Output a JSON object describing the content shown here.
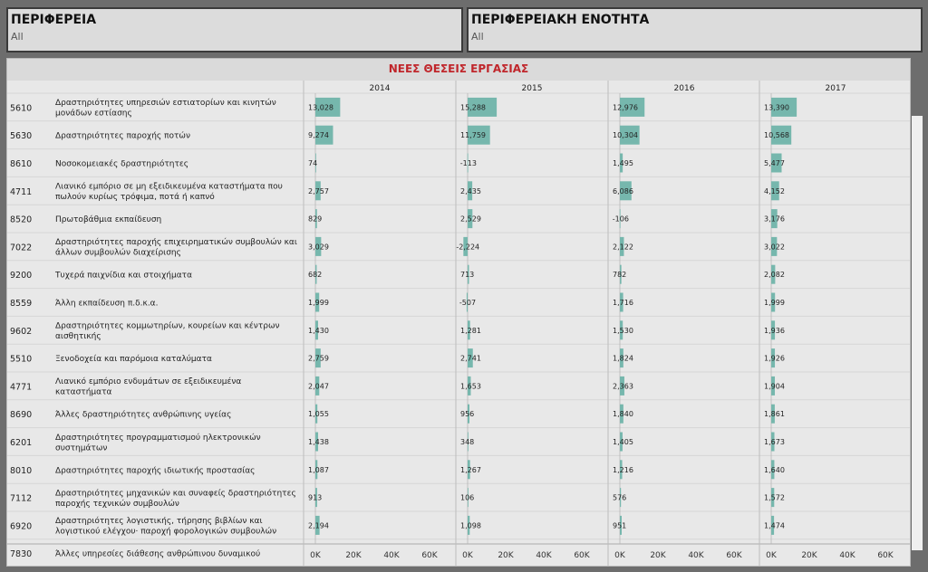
{
  "filters": [
    {
      "title": "ΠΕΡΙΦΕΡΕΙΑ",
      "value": "All"
    },
    {
      "title": "ΠΕΡΙΦΕΡΕΙΑΚΗ ΕΝΟΤΗΤΑ",
      "value": "All"
    }
  ],
  "chart_data": {
    "type": "bar",
    "title": "ΝΕΕΣ ΘΕΣΕΙΣ ΕΡΓΑΣΙΑΣ",
    "columns": [
      "2014",
      "2015",
      "2016",
      "2017"
    ],
    "axis_ticks": [
      "0K",
      "20K",
      "40K",
      "60K"
    ],
    "xlim": [
      -3000,
      70000
    ],
    "bar_color": "#76b7ad",
    "rows": [
      {
        "code": "5610",
        "label": "Δραστηριότητες υπηρεσιών εστιατορίων και κινητών μονάδων εστίασης",
        "values": [
          13028,
          15288,
          12976,
          13390
        ],
        "labels": [
          "13,028",
          "15,288",
          "12,976",
          "13,390"
        ]
      },
      {
        "code": "5630",
        "label": "Δραστηριότητες παροχής ποτών",
        "values": [
          9274,
          11759,
          10304,
          10568
        ],
        "labels": [
          "9,274",
          "11,759",
          "10,304",
          "10,568"
        ]
      },
      {
        "code": "8610",
        "label": "Νοσοκομειακές δραστηριότητες",
        "values": [
          74,
          -113,
          1495,
          5477
        ],
        "labels": [
          "74",
          "-113",
          "1,495",
          "5,477"
        ]
      },
      {
        "code": "4711",
        "label": "Λιανικό εμπόριο σε μη εξειδικευμένα καταστήματα που πωλούν κυρίως τρόφιμα, ποτά ή καπνό",
        "values": [
          2757,
          2435,
          6086,
          4152
        ],
        "labels": [
          "2,757",
          "2,435",
          "6,086",
          "4,152"
        ]
      },
      {
        "code": "8520",
        "label": "Πρωτοβάθμια εκπαίδευση",
        "values": [
          829,
          2529,
          -106,
          3176
        ],
        "labels": [
          "829",
          "2,529",
          "-106",
          "3,176"
        ]
      },
      {
        "code": "7022",
        "label": "Δραστηριότητες παροχής επιχειρηματικών συμβουλών και άλλων συμβουλών διαχείρισης",
        "values": [
          3029,
          -2224,
          2122,
          3022
        ],
        "labels": [
          "3,029",
          "-2,224",
          "2,122",
          "3,022"
        ]
      },
      {
        "code": "9200",
        "label": "Τυχερά παιχνίδια και στοιχήματα",
        "values": [
          682,
          713,
          782,
          2082
        ],
        "labels": [
          "682",
          "713",
          "782",
          "2,082"
        ]
      },
      {
        "code": "8559",
        "label": "Άλλη εκπαίδευση π.δ.κ.α.",
        "values": [
          1999,
          -507,
          1716,
          1999
        ],
        "labels": [
          "1,999",
          "-507",
          "1,716",
          "1,999"
        ]
      },
      {
        "code": "9602",
        "label": "Δραστηριότητες κομμωτηρίων, κουρείων και κέντρων αισθητικής",
        "values": [
          1430,
          1281,
          1530,
          1936
        ],
        "labels": [
          "1,430",
          "1,281",
          "1,530",
          "1,936"
        ]
      },
      {
        "code": "5510",
        "label": "Ξενοδοχεία και παρόμοια καταλύματα",
        "values": [
          2759,
          2741,
          1824,
          1926
        ],
        "labels": [
          "2,759",
          "2,741",
          "1,824",
          "1,926"
        ]
      },
      {
        "code": "4771",
        "label": "Λιανικό εμπόριο ενδυμάτων σε εξειδικευμένα καταστήματα",
        "values": [
          2047,
          1653,
          2363,
          1904
        ],
        "labels": [
          "2,047",
          "1,653",
          "2,363",
          "1,904"
        ]
      },
      {
        "code": "8690",
        "label": "Άλλες δραστηριότητες ανθρώπινης υγείας",
        "values": [
          1055,
          956,
          1840,
          1861
        ],
        "labels": [
          "1,055",
          "956",
          "1,840",
          "1,861"
        ]
      },
      {
        "code": "6201",
        "label": "Δραστηριότητες προγραμματισμού ηλεκτρονικών συστημάτων",
        "values": [
          1438,
          348,
          1405,
          1673
        ],
        "labels": [
          "1,438",
          "348",
          "1,405",
          "1,673"
        ]
      },
      {
        "code": "8010",
        "label": "Δραστηριότητες παροχής ιδιωτικής προστασίας",
        "values": [
          1087,
          1267,
          1216,
          1640
        ],
        "labels": [
          "1,087",
          "1,267",
          "1,216",
          "1,640"
        ]
      },
      {
        "code": "7112",
        "label": "Δραστηριότητες μηχανικών και συναφείς δραστηριότητες παροχής τεχνικών συμβουλών",
        "values": [
          913,
          106,
          576,
          1572
        ],
        "labels": [
          "913",
          "106",
          "576",
          "1,572"
        ]
      },
      {
        "code": "6920",
        "label": "Δραστηριότητες λογιστικής, τήρησης βιβλίων και λογιστικού ελέγχου· παροχή φορολογικών συμβουλών",
        "values": [
          2194,
          1098,
          951,
          1474
        ],
        "labels": [
          "2,194",
          "1,098",
          "951",
          "1,474"
        ]
      },
      {
        "code": "7830",
        "label": "Άλλες υπηρεσίες διάθεσης ανθρώπινου δυναμικού",
        "values": [],
        "labels": []
      }
    ]
  }
}
